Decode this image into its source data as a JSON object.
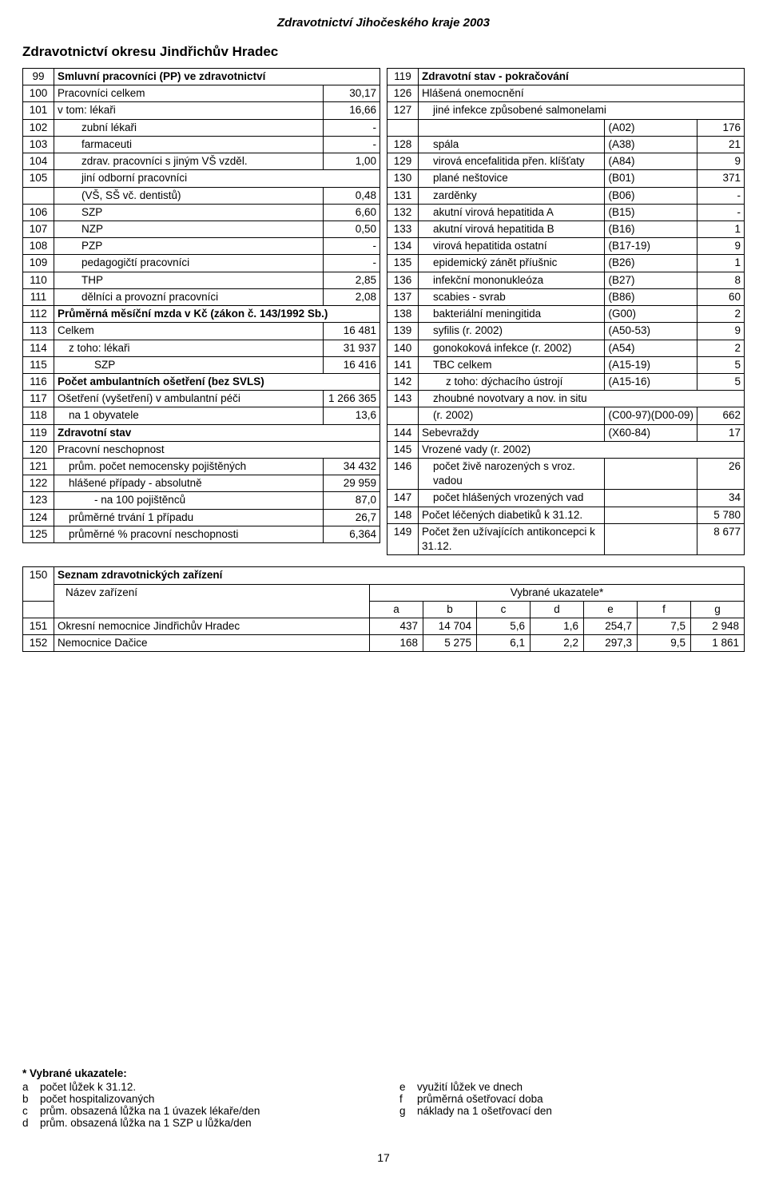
{
  "header": "Zdravotnictví Jihočeského kraje 2003",
  "title": "Zdravotnictví okresu Jindřichův Hradec",
  "left_rows": [
    {
      "n": "99",
      "label": "Smluvní pracovníci (PP) ve zdravotnictví",
      "val": "",
      "bold": true,
      "indent": 0
    },
    {
      "n": "100",
      "label": "Pracovníci celkem",
      "val": "30,17",
      "indent": 0
    },
    {
      "n": "101",
      "label": "v tom: lékaři",
      "val": "16,66",
      "indent": 0
    },
    {
      "n": "102",
      "label": "zubní lékaři",
      "val": "-",
      "indent": 2
    },
    {
      "n": "103",
      "label": "farmaceuti",
      "val": "-",
      "indent": 2
    },
    {
      "n": "104",
      "label": "zdrav. pracovníci s jiným VŠ vzděl.",
      "val": "1,00",
      "indent": 2
    },
    {
      "n": "105",
      "label": "jiní odborní pracovníci",
      "val": "",
      "indent": 2
    },
    {
      "n": "",
      "label": "(VŠ, SŠ vč. dentistů)",
      "val": "0,48",
      "indent": 2
    },
    {
      "n": "106",
      "label": "SZP",
      "val": "6,60",
      "indent": 2
    },
    {
      "n": "107",
      "label": "NZP",
      "val": "0,50",
      "indent": 2
    },
    {
      "n": "108",
      "label": "PZP",
      "val": "-",
      "indent": 2
    },
    {
      "n": "109",
      "label": "pedagogičtí pracovníci",
      "val": "-",
      "indent": 2
    },
    {
      "n": "110",
      "label": "THP",
      "val": "2,85",
      "indent": 2
    },
    {
      "n": "111",
      "label": "dělníci a provozní pracovníci",
      "val": "2,08",
      "indent": 2
    },
    {
      "n": "112",
      "label": "Průměrná měsíční mzda v Kč (zákon č. 143/1992 Sb.)",
      "val": "",
      "bold": true,
      "indent": 0
    },
    {
      "n": "113",
      "label": "Celkem",
      "val": "16 481",
      "indent": 0
    },
    {
      "n": "114",
      "label": "z toho: lékaři",
      "val": "31 937",
      "indent": 1
    },
    {
      "n": "115",
      "label": "SZP",
      "val": "16 416",
      "indent": 3
    },
    {
      "n": "116",
      "label": "Počet ambulantních ošetření (bez SVLS)",
      "val": "",
      "bold": true,
      "indent": 0
    },
    {
      "n": "117",
      "label": "Ošetření (vyšetření) v ambulantní péči",
      "val": "1 266 365",
      "indent": 0
    },
    {
      "n": "118",
      "label": "na 1 obyvatele",
      "val": "13,6",
      "indent": 1
    },
    {
      "n": "119",
      "label": "Zdravotní stav",
      "val": "",
      "bold": true,
      "indent": 0
    },
    {
      "n": "120",
      "label": "Pracovní neschopnost",
      "val": "",
      "indent": 0
    },
    {
      "n": "121",
      "label": "prům. počet nemocensky pojištěných",
      "val": "34 432",
      "indent": 1
    },
    {
      "n": "122",
      "label": "hlášené případy  - absolutně",
      "val": "29 959",
      "indent": 1
    },
    {
      "n": "123",
      "label": "- na 100 pojištěnců",
      "val": "87,0",
      "indent": 3
    },
    {
      "n": "124",
      "label": "průměrné trvání 1 případu",
      "val": "26,7",
      "indent": 1
    },
    {
      "n": "125",
      "label": "průměrné % pracovní neschopnosti",
      "val": "6,364",
      "indent": 1
    }
  ],
  "right_rows": [
    {
      "n": "119",
      "label": "Zdravotní stav - pokračování",
      "code": "",
      "val": "",
      "bold": true,
      "indent": 0
    },
    {
      "n": "126",
      "label": "Hlášená onemocnění",
      "code": "",
      "val": "",
      "indent": 0
    },
    {
      "n": "127",
      "label": "jiné infekce způsobené salmonelami",
      "code": "",
      "val": "",
      "indent": 1
    },
    {
      "n": "",
      "label": "",
      "code": "(A02)",
      "val": "176",
      "indent": 1
    },
    {
      "n": "128",
      "label": "spála",
      "code": "(A38)",
      "val": "21",
      "indent": 1
    },
    {
      "n": "129",
      "label": "virová encefalitida přen. klíšťaty",
      "code": "(A84)",
      "val": "9",
      "indent": 1
    },
    {
      "n": "130",
      "label": "plané neštovice",
      "code": "(B01)",
      "val": "371",
      "indent": 1
    },
    {
      "n": "131",
      "label": "zarděnky",
      "code": "(B06)",
      "val": "-",
      "indent": 1
    },
    {
      "n": "132",
      "label": "akutní virová hepatitida A",
      "code": "(B15)",
      "val": "-",
      "indent": 1
    },
    {
      "n": "133",
      "label": "akutní virová hepatitida B",
      "code": "(B16)",
      "val": "1",
      "indent": 1
    },
    {
      "n": "134",
      "label": "virová hepatitida ostatní",
      "code": "(B17-19)",
      "val": "9",
      "indent": 1
    },
    {
      "n": "135",
      "label": "epidemický zánět příušnic",
      "code": "(B26)",
      "val": "1",
      "indent": 1
    },
    {
      "n": "136",
      "label": "infekční mononukleóza",
      "code": "(B27)",
      "val": "8",
      "indent": 1
    },
    {
      "n": "137",
      "label": "scabies - svrab",
      "code": "(B86)",
      "val": "60",
      "indent": 1
    },
    {
      "n": "138",
      "label": "bakteriální meningitida",
      "code": "(G00)",
      "val": "2",
      "indent": 1
    },
    {
      "n": "139",
      "label": "syfilis (r. 2002)",
      "code": "(A50-53)",
      "val": "9",
      "indent": 1
    },
    {
      "n": "140",
      "label": "gonokoková infekce (r. 2002)",
      "code": "(A54)",
      "val": "2",
      "indent": 1
    },
    {
      "n": "141",
      "label": "TBC celkem",
      "code": "(A15-19)",
      "val": "5",
      "indent": 1
    },
    {
      "n": "142",
      "label": "z toho: dýchacího ústrojí",
      "code": "(A15-16)",
      "val": "5",
      "indent": 2
    },
    {
      "n": "143",
      "label": "zhoubné novotvary a nov. in situ",
      "code": "",
      "val": "",
      "indent": 1
    },
    {
      "n": "",
      "label": "(r. 2002)",
      "code": "(C00-97)(D00-09)",
      "val": "662",
      "indent": 1
    },
    {
      "n": "144",
      "label": "Sebevraždy",
      "code": "(X60-84)",
      "val": "17",
      "indent": 0
    },
    {
      "n": "145",
      "label": "Vrozené vady (r. 2002)",
      "code": "",
      "val": "",
      "indent": 0
    },
    {
      "n": "146",
      "label": "počet živě narozených s vroz. vadou",
      "code": "",
      "val": "26",
      "indent": 1
    },
    {
      "n": "147",
      "label": "počet hlášených vrozených vad",
      "code": "",
      "val": "34",
      "indent": 1
    },
    {
      "n": "148",
      "label": "Počet léčených diabetiků k 31.12.",
      "code": "",
      "val": "5 780",
      "indent": 0
    },
    {
      "n": "149",
      "label": "Počet žen užívajících antikoncepci k 31.12.",
      "code": "",
      "val": "8 677",
      "indent": 0
    }
  ],
  "facilities": {
    "section_n": "150",
    "section_title": "Seznam zdravotnických zařízení",
    "name_header": "Název zařízení",
    "ind_header": "Vybrané ukazatele*",
    "cols": [
      "a",
      "b",
      "c",
      "d",
      "e",
      "f",
      "g"
    ],
    "rows": [
      {
        "n": "151",
        "name": "Okresní nemocnice Jindřichův Hradec",
        "vals": [
          "437",
          "14 704",
          "5,6",
          "1,6",
          "254,7",
          "7,5",
          "2 948"
        ]
      },
      {
        "n": "152",
        "name": "Nemocnice Dačice",
        "vals": [
          "168",
          "5 275",
          "6,1",
          "2,2",
          "297,3",
          "9,5",
          "1 861"
        ]
      }
    ]
  },
  "footnotes": {
    "title": "*   Vybrané ukazatele:",
    "left": [
      {
        "k": "a",
        "t": "počet lůžek k 31.12."
      },
      {
        "k": "b",
        "t": "počet hospitalizovaných"
      },
      {
        "k": "c",
        "t": "prům. obsazená lůžka na 1 úvazek lékaře/den"
      },
      {
        "k": "d",
        "t": "prům. obsazená lůžka na 1 SZP u lůžka/den"
      }
    ],
    "right": [
      {
        "k": "e",
        "t": "využití lůžek ve dnech"
      },
      {
        "k": "f",
        "t": "průměrná ošetřovací doba"
      },
      {
        "k": "g",
        "t": "náklady na 1 ošetřovací den"
      }
    ]
  },
  "page_number": "17"
}
